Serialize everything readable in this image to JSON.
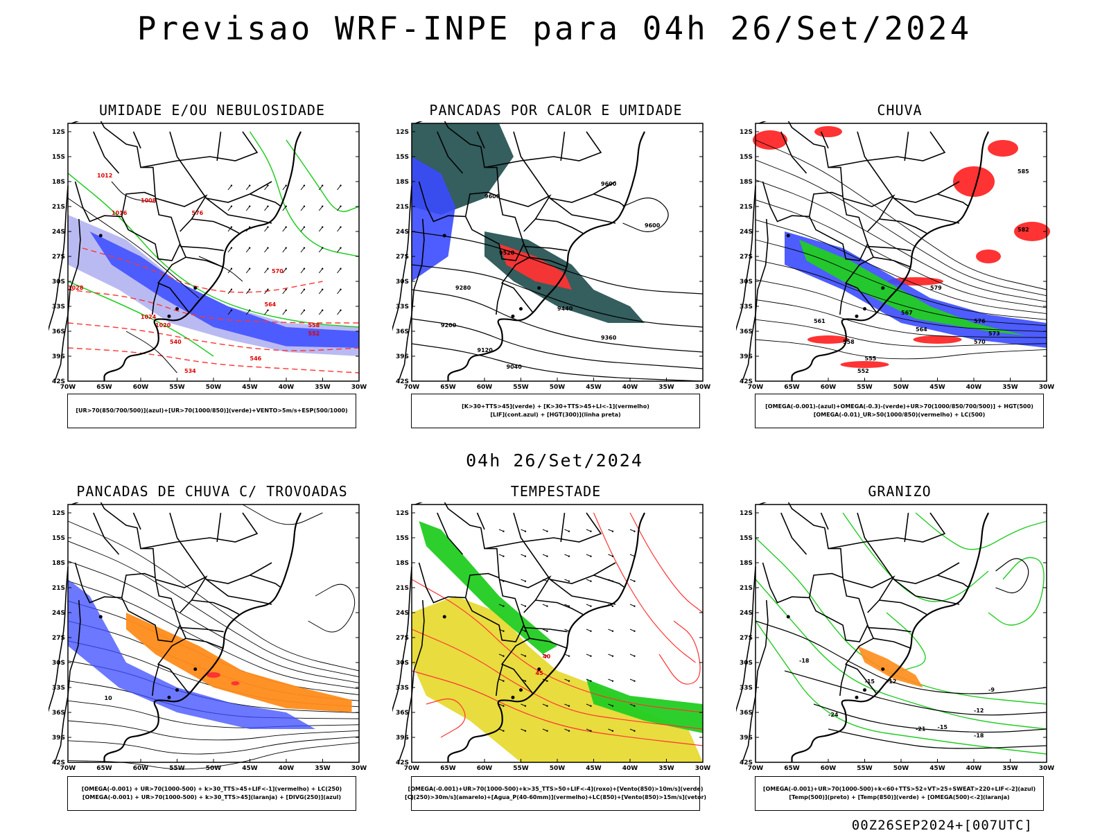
{
  "main_title": "Previsao WRF-INPE  para 04h 26/Set/2024",
  "mid_title": "04h 26/Set/2024",
  "footer_code": "00Z26SEP2024+[007UTC]",
  "colors": {
    "rh_blue": "#3a4bff",
    "rh_lavender": "#b2b2f2",
    "green": "#22cc22",
    "red": "#ff3333",
    "dark_teal": "#1f4d4d",
    "orange": "#ff8c1a",
    "yellow": "#e6d82a",
    "black": "#000000"
  },
  "chart_data": [
    {
      "type": "map",
      "id": "p1",
      "title": "UMIDADE E/OU NEBULOSIDADE",
      "lat_ticks": [
        "12S",
        "15S",
        "18S",
        "21S",
        "24S",
        "27S",
        "30S",
        "33S",
        "36S",
        "39S",
        "42S"
      ],
      "lon_ticks": [
        "70W",
        "65W",
        "60W",
        "55W",
        "50W",
        "45W",
        "40W",
        "35W",
        "30W"
      ],
      "contour_labels": [
        "1008",
        "1012",
        "1016",
        "1020",
        "1024",
        "1028",
        "576",
        "570",
        "564",
        "558",
        "552",
        "546",
        "540",
        "534"
      ],
      "legend": [
        "[UR>70(850/700/500)](azul)+[UR>70(1000/850)](verde)+VENTO>5m/s+ESP(500/1000)"
      ]
    },
    {
      "type": "map",
      "id": "p2",
      "title": "PANCADAS POR CALOR E UMIDADE",
      "lat_ticks": [
        "12S",
        "15S",
        "18S",
        "21S",
        "24S",
        "27S",
        "30S",
        "33S",
        "36S",
        "39S",
        "42S"
      ],
      "lon_ticks": [
        "70W",
        "65W",
        "60W",
        "55W",
        "50W",
        "45W",
        "40W",
        "35W",
        "30W"
      ],
      "contour_labels": [
        "9600",
        "9520",
        "9440",
        "9360",
        "9280",
        "9200",
        "9120",
        "9040"
      ],
      "legend": [
        "[K>30+TTS>45](verde) + [K>30+TTS>45+LI<-1](vermelho)",
        "[LIF](cont.azul) + [HGT(300)](linha preta)"
      ]
    },
    {
      "type": "map",
      "id": "p3",
      "title": "CHUVA",
      "lat_ticks": [
        "12S",
        "15S",
        "18S",
        "21S",
        "24S",
        "27S",
        "30S",
        "33S",
        "36S",
        "39S",
        "42S"
      ],
      "lon_ticks": [
        "70W",
        "65W",
        "60W",
        "55W",
        "50W",
        "45W",
        "40W",
        "35W",
        "30W"
      ],
      "contour_labels": [
        "585",
        "582",
        "579",
        "576",
        "573",
        "570",
        "567",
        "564",
        "561",
        "558",
        "555",
        "552"
      ],
      "legend": [
        "[OMEGA(-0.001)-(azul)+OMEGA(-0.3)-(verde)+UR>70(1000/850/700/500)] + HGT(500)",
        "[OMEGA(-0.01)_UR>50(1000/850)(vermelho) + LC(500)"
      ]
    },
    {
      "type": "map",
      "id": "p4",
      "title": "PANCADAS DE CHUVA C/ TROVOADAS",
      "lat_ticks": [
        "12S",
        "15S",
        "18S",
        "21S",
        "24S",
        "27S",
        "30S",
        "33S",
        "36S",
        "39S",
        "42S"
      ],
      "lon_ticks": [
        "70W",
        "65W",
        "60W",
        "55W",
        "50W",
        "45W",
        "40W",
        "35W",
        "30W"
      ],
      "contour_labels": [
        "10"
      ],
      "legend": [
        "[OMEGA(-0.001) + UR>70(1000-500) + k>30_TTS>45+LIF<-1](vermelho) + LC(250)",
        "[OMEGA(-0.001) + UR>70(1000-500) + k>30_TTS>45](laranja) + [DIVG(250)](azul)"
      ]
    },
    {
      "type": "map",
      "id": "p5",
      "title": "TEMPESTADE",
      "lat_ticks": [
        "12S",
        "15S",
        "18S",
        "21S",
        "24S",
        "27S",
        "30S",
        "33S",
        "36S",
        "39S",
        "42S"
      ],
      "lon_ticks": [
        "70W",
        "65W",
        "60W",
        "55W",
        "50W",
        "45W",
        "40W",
        "35W",
        "30W"
      ],
      "contour_labels": [
        "40",
        "45"
      ],
      "legend": [
        "[OMEGA(-0.001)+UR>70(1000-500)+k>35_TTS>50+LIF<-4](roxo)+[Vento(850)>10m/s](verde)",
        "[CJ(250)>30m/s](amarelo)+[Agua_P(40-60mm)](vermelho)+LC(850)+[Vento(850)>15m/s](vetor)"
      ]
    },
    {
      "type": "map",
      "id": "p6",
      "title": "GRANIZO",
      "lat_ticks": [
        "12S",
        "15S",
        "18S",
        "21S",
        "24S",
        "27S",
        "30S",
        "33S",
        "36S",
        "39S",
        "42S"
      ],
      "lon_ticks": [
        "70W",
        "65W",
        "60W",
        "55W",
        "50W",
        "45W",
        "40W",
        "35W",
        "30W"
      ],
      "contour_labels": [
        "-9",
        "-12",
        "-15",
        "-18",
        "-21",
        "-24"
      ],
      "legend": [
        "[OMEGA(-0.001)+UR>70(1000-500)+k<60+TTS>52+VT>25+SWEAT>220+LIF<-2](azul)",
        "[Temp(500)](preto) + [Temp(850)](verde) + [OMEGA(500)<-2](laranja)"
      ]
    }
  ]
}
